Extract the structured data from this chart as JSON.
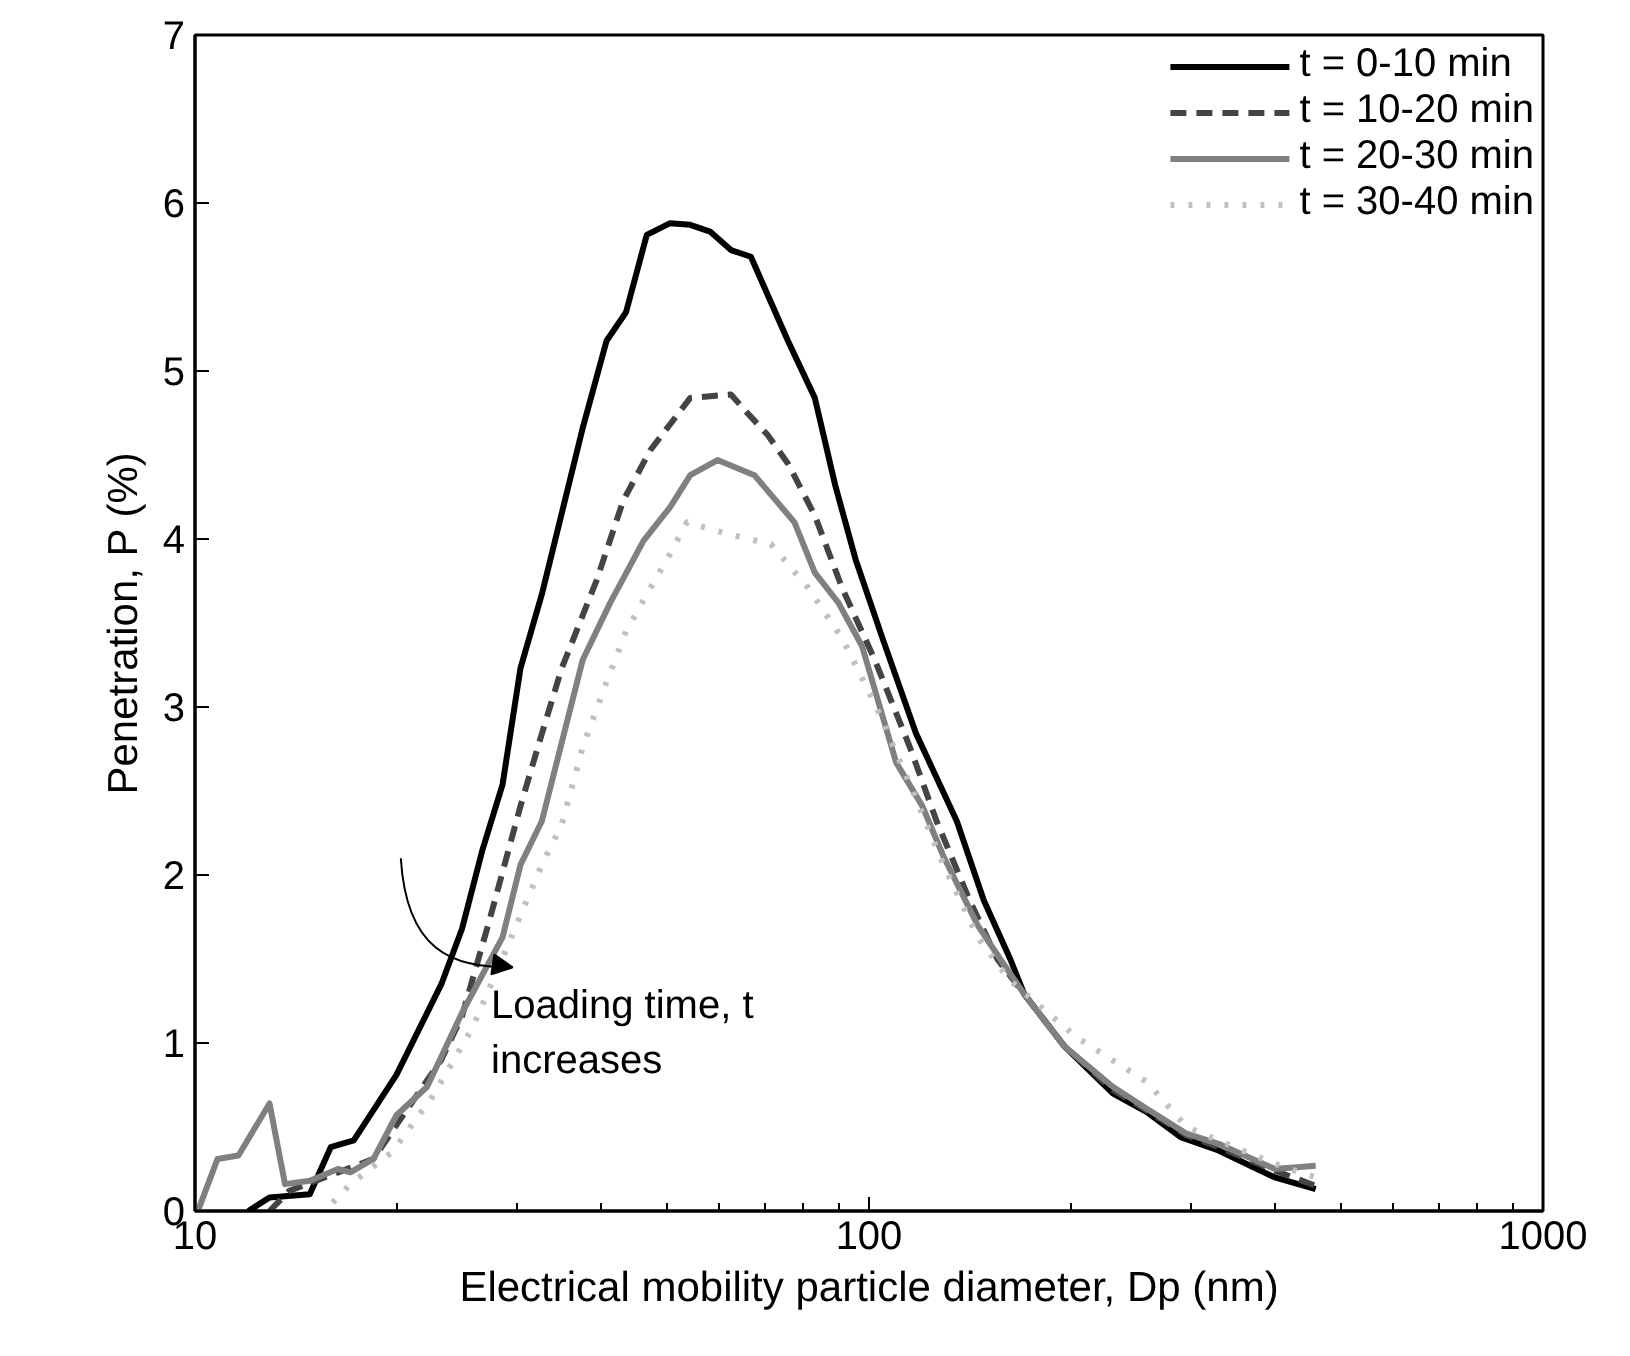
{
  "chart_data": {
    "type": "line",
    "xlabel": "Electrical mobility particle diameter, Dp (nm)",
    "ylabel": "Penetration, P (%)",
    "log": "x",
    "xlim": [
      10,
      1000
    ],
    "xticks": [
      10,
      100,
      1000
    ],
    "ylim": [
      0,
      7
    ],
    "yticks": [
      0,
      1,
      2,
      3,
      4,
      5,
      6,
      7
    ],
    "grid": false,
    "legend": "top right",
    "marker": "none",
    "annotations": [
      "Loading time, t\nincreases"
    ],
    "series": [
      {
        "name": "t = 0-10 min",
        "color": "#000000",
        "line_style": "solid",
        "x": [
          12.0,
          12.9,
          14.8,
          15.9,
          17.2,
          19.9,
          23.2,
          24.9,
          26.7,
          28.6,
          30.4,
          32.7,
          37.6,
          40.8,
          43.6,
          46.8,
          50.7,
          54.3,
          58.1,
          62.4,
          66.8,
          75.8,
          83.1,
          89.1,
          95.5,
          104.7,
          117.5,
          135,
          148,
          162,
          170,
          195,
          230,
          258,
          290,
          330,
          400,
          460
        ],
        "values": [
          0,
          0.08,
          0.1,
          0.38,
          0.42,
          0.81,
          1.35,
          1.68,
          2.15,
          2.54,
          3.23,
          3.67,
          4.66,
          5.18,
          5.35,
          5.81,
          5.88,
          5.87,
          5.83,
          5.72,
          5.68,
          5.18,
          4.84,
          4.32,
          3.88,
          3.41,
          2.84,
          2.32,
          1.85,
          1.5,
          1.29,
          0.98,
          0.7,
          0.59,
          0.44,
          0.36,
          0.2,
          0.13
        ]
      },
      {
        "name": "t = 10-20 min",
        "color": "#444444",
        "line_style": "dashed",
        "x": [
          12.9,
          13.8,
          16.3,
          18.4,
          20.2,
          23.2,
          24.9,
          27.3,
          30.4,
          32.7,
          35,
          39.4,
          43.2,
          47.4,
          54.3,
          62.4,
          66,
          70.7,
          75.8,
          83.1,
          91.2,
          102,
          115,
          126,
          141,
          155,
          170,
          195,
          230,
          258,
          296,
          330,
          400,
          460
        ],
        "values": [
          0,
          0.12,
          0.23,
          0.31,
          0.55,
          0.9,
          1.16,
          1.72,
          2.41,
          2.84,
          3.23,
          3.75,
          4.23,
          4.53,
          4.84,
          4.86,
          4.75,
          4.62,
          4.45,
          4.14,
          3.71,
          3.28,
          2.76,
          2.32,
          1.85,
          1.5,
          1.29,
          0.98,
          0.72,
          0.6,
          0.45,
          0.38,
          0.24,
          0.15
        ]
      },
      {
        "name": "t = 20-30 min",
        "color": "#808080",
        "line_style": "solid",
        "x": [
          10.1,
          10.8,
          11.6,
          12.9,
          13.6,
          14.8,
          16.3,
          17.0,
          18.4,
          19.9,
          22.1,
          24.9,
          28.6,
          30.4,
          32.7,
          37.6,
          41.3,
          46.3,
          50.7,
          54.3,
          59.6,
          67.6,
          77.5,
          83.1,
          90.1,
          97.7,
          109.7,
          120,
          129,
          145,
          159,
          170,
          195,
          230,
          258,
          296,
          330,
          400,
          460
        ],
        "values": [
          0,
          0.31,
          0.33,
          0.64,
          0.16,
          0.18,
          0.25,
          0.23,
          0.31,
          0.57,
          0.74,
          1.18,
          1.63,
          2.06,
          2.32,
          3.28,
          3.62,
          3.99,
          4.19,
          4.38,
          4.47,
          4.38,
          4.1,
          3.8,
          3.62,
          3.36,
          2.67,
          2.41,
          2.11,
          1.7,
          1.46,
          1.29,
          0.98,
          0.74,
          0.61,
          0.46,
          0.4,
          0.25,
          0.27
        ]
      },
      {
        "name": "t = 30-40 min",
        "color": "#c0c0c0",
        "line_style": "dotted",
        "x": [
          16.0,
          17.0,
          19.6,
          22.5,
          25.8,
          28.9,
          32.7,
          35,
          37.6,
          40.8,
          43.6,
          46.8,
          50.5,
          53.7,
          61.6,
          71.5,
          81.2,
          91.2,
          102,
          115,
          129,
          145,
          162,
          204,
          258,
          296,
          330,
          400,
          460
        ],
        "values": [
          0.05,
          0.16,
          0.35,
          0.68,
          1.09,
          1.55,
          2.06,
          2.3,
          2.76,
          3.15,
          3.45,
          3.67,
          3.9,
          4.1,
          4.03,
          3.97,
          3.71,
          3.41,
          3.02,
          2.54,
          2.06,
          1.63,
          1.37,
          1.03,
          0.77,
          0.5,
          0.42,
          0.28,
          0.2
        ]
      }
    ]
  }
}
